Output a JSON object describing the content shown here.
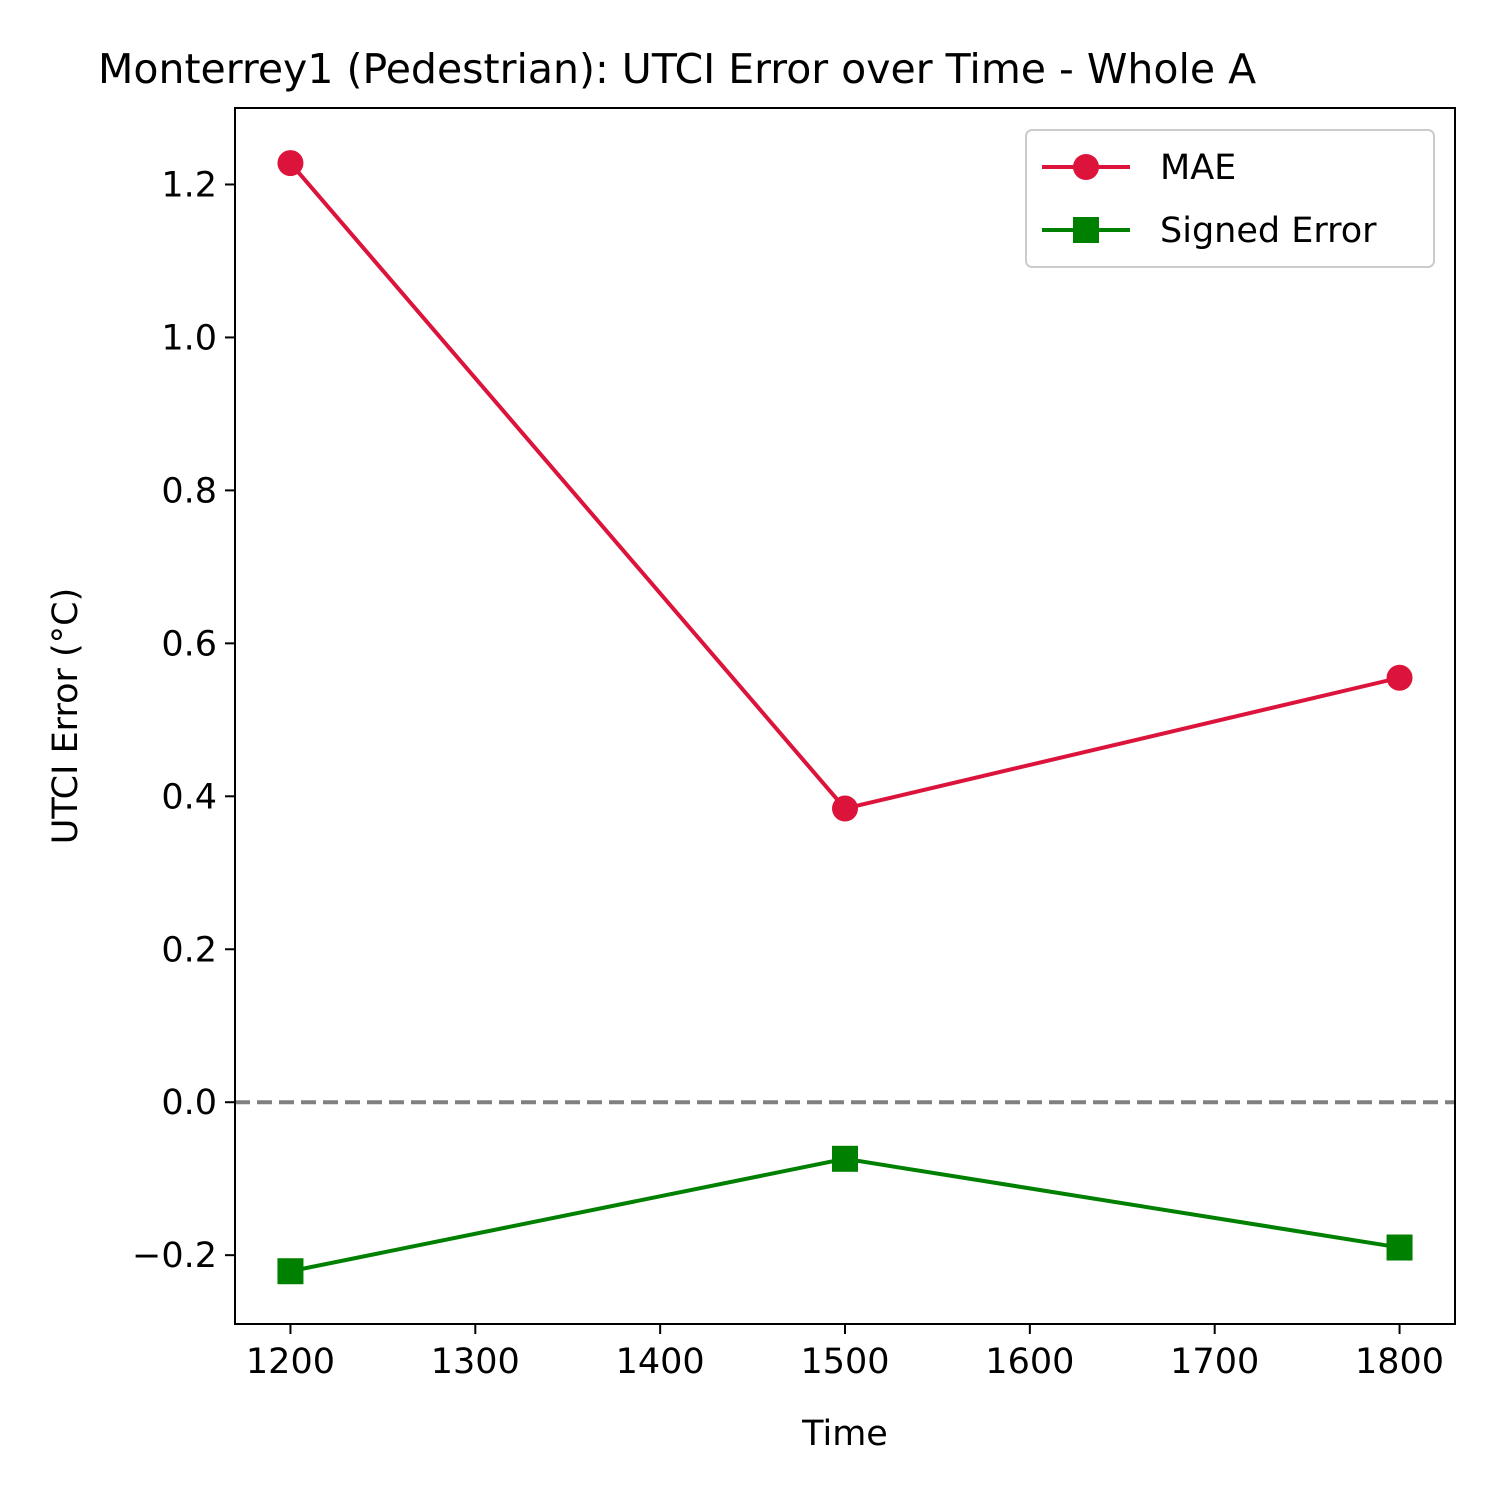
{
  "chart_data": {
    "type": "line",
    "title": "Monterrey1 (Pedestrian): UTCI Error over Time - Whole A",
    "xlabel": "Time",
    "ylabel": "UTCI Error (°C)",
    "xlim": [
      1170,
      1830
    ],
    "ylim": [
      -0.29,
      1.3
    ],
    "x": [
      1200,
      1500,
      1800
    ],
    "xticks": [
      1200,
      1300,
      1400,
      1500,
      1600,
      1700,
      1800
    ],
    "xtick_labels": [
      "1200",
      "1300",
      "1400",
      "1500",
      "1600",
      "1700",
      "1800"
    ],
    "yticks": [
      -0.2,
      0.0,
      0.2,
      0.4,
      0.6,
      0.8,
      1.0,
      1.2
    ],
    "ytick_labels": [
      "−0.2",
      "0.0",
      "0.2",
      "0.4",
      "0.6",
      "0.8",
      "1.0",
      "1.2"
    ],
    "series": [
      {
        "name": "MAE",
        "values": [
          1.228,
          0.384,
          0.555
        ],
        "color": "#dc143c",
        "marker": "circle"
      },
      {
        "name": "Signed Error",
        "values": [
          -0.221,
          -0.074,
          -0.19
        ],
        "color": "#008000",
        "marker": "square"
      }
    ],
    "reference_line": {
      "y": 0.0,
      "color": "#808080",
      "style": "dashed"
    },
    "legend": {
      "position": "top-right"
    },
    "grid": false
  }
}
